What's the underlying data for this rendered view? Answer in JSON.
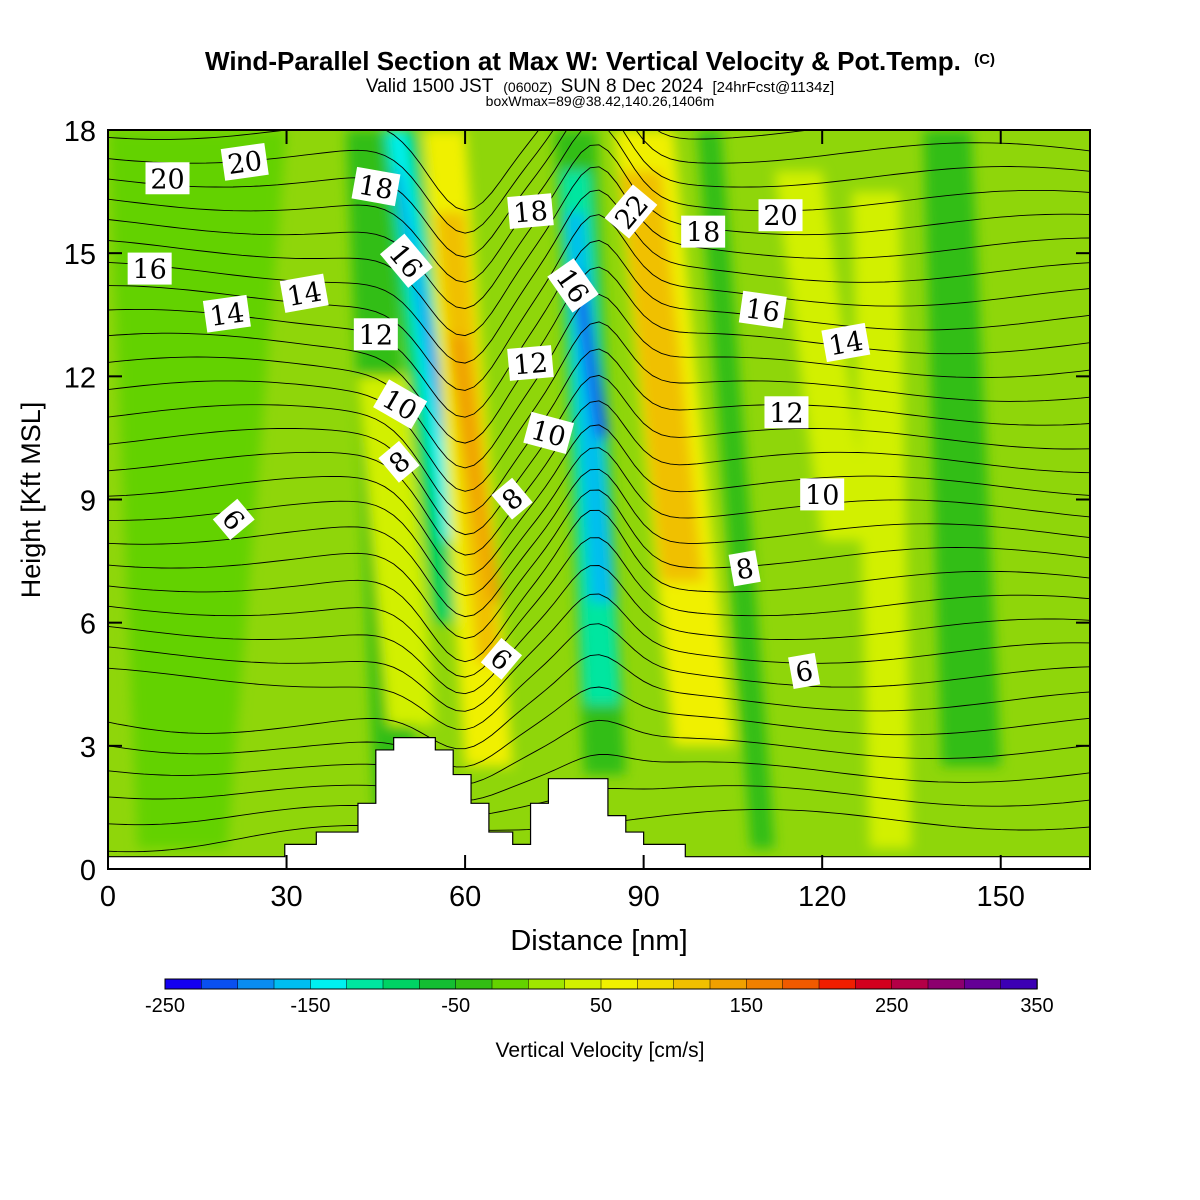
{
  "chart_data": {
    "type": "heatmap",
    "title": "Wind-Parallel Section at Max W: Vertical Velocity & Pot.Temp.",
    "title_mark": "(C)",
    "subtitle_main": "Valid 1500 JST",
    "subtitle_z": "(0600Z)",
    "subtitle_date": "SUN 8 Dec 2024",
    "subtitle_fcst": "[24hrFcst@1134z]",
    "subtitle2": "boxWmax=89@38.42,140.26,1406m",
    "xlabel": "Distance [nm]",
    "ylabel": "Height [Kft MSL]",
    "xlim": [
      0,
      165
    ],
    "ylim": [
      0,
      18
    ],
    "x_ticks": [
      0,
      30,
      60,
      90,
      120,
      150
    ],
    "y_ticks": [
      0,
      3,
      6,
      9,
      12,
      15,
      18
    ],
    "colorbar": {
      "label": "Vertical Velocity [cm/s]",
      "range": [
        -250,
        350
      ],
      "tick_labels": [
        "-250",
        "-150",
        "-50",
        "50",
        "150",
        "250",
        "350"
      ],
      "colors": [
        "#1400f0",
        "#0a50f0",
        "#0a8cf0",
        "#00bef0",
        "#00f0f0",
        "#00e6a0",
        "#00d264",
        "#14be32",
        "#32be14",
        "#64d200",
        "#a0e600",
        "#d2f000",
        "#f0f000",
        "#f0dc00",
        "#f0c000",
        "#f0a000",
        "#f08000",
        "#f05a00",
        "#f01e00",
        "#d2001e",
        "#b40046",
        "#8c006e",
        "#640096",
        "#3c00b4"
      ]
    },
    "theta_contour_labels": [
      {
        "text": "20",
        "x": 10,
        "y": 16.8,
        "rot": 0
      },
      {
        "text": "20",
        "x": 23,
        "y": 17.2,
        "rot": -8
      },
      {
        "text": "18",
        "x": 45,
        "y": 16.6,
        "rot": 10
      },
      {
        "text": "18",
        "x": 71,
        "y": 16.0,
        "rot": -5
      },
      {
        "text": "22",
        "x": 88,
        "y": 16.0,
        "rot": -50
      },
      {
        "text": "18",
        "x": 100,
        "y": 15.5,
        "rot": 0
      },
      {
        "text": "20",
        "x": 113,
        "y": 15.9,
        "rot": 0
      },
      {
        "text": "16",
        "x": 7,
        "y": 14.6,
        "rot": 0
      },
      {
        "text": "16",
        "x": 50,
        "y": 14.8,
        "rot": 50
      },
      {
        "text": "16",
        "x": 78,
        "y": 14.2,
        "rot": 55
      },
      {
        "text": "16",
        "x": 110,
        "y": 13.6,
        "rot": 8
      },
      {
        "text": "14",
        "x": 20,
        "y": 13.5,
        "rot": -8
      },
      {
        "text": "14",
        "x": 33,
        "y": 14.0,
        "rot": -10
      },
      {
        "text": "14",
        "x": 124,
        "y": 12.8,
        "rot": -10
      },
      {
        "text": "12",
        "x": 45,
        "y": 13.0,
        "rot": 0
      },
      {
        "text": "12",
        "x": 71,
        "y": 12.3,
        "rot": -5
      },
      {
        "text": "12",
        "x": 114,
        "y": 11.1,
        "rot": 0
      },
      {
        "text": "10",
        "x": 49,
        "y": 11.3,
        "rot": 30
      },
      {
        "text": "10",
        "x": 74,
        "y": 10.6,
        "rot": 15
      },
      {
        "text": "10",
        "x": 120,
        "y": 9.1,
        "rot": 0
      },
      {
        "text": "8",
        "x": 49,
        "y": 9.9,
        "rot": -40
      },
      {
        "text": "8",
        "x": 68,
        "y": 9.0,
        "rot": -40
      },
      {
        "text": "8",
        "x": 107,
        "y": 7.3,
        "rot": -10
      },
      {
        "text": "6",
        "x": 21,
        "y": 8.5,
        "rot": 50
      },
      {
        "text": "6",
        "x": 66,
        "y": 5.1,
        "rot": 40
      },
      {
        "text": "6",
        "x": 117,
        "y": 4.8,
        "rot": -10
      }
    ],
    "terrain_profile": [
      [
        0,
        0.3
      ],
      [
        29.7,
        0.3
      ],
      [
        29.7,
        0.6
      ],
      [
        35,
        0.6
      ],
      [
        35,
        0.9
      ],
      [
        42,
        0.9
      ],
      [
        42,
        1.6
      ],
      [
        45,
        1.6
      ],
      [
        45,
        2.9
      ],
      [
        48,
        2.9
      ],
      [
        48,
        3.2
      ],
      [
        55,
        3.2
      ],
      [
        55,
        2.9
      ],
      [
        58,
        2.9
      ],
      [
        58,
        2.3
      ],
      [
        61,
        2.3
      ],
      [
        61,
        1.6
      ],
      [
        64,
        1.6
      ],
      [
        64,
        0.9
      ],
      [
        68,
        0.9
      ],
      [
        68,
        0.6
      ],
      [
        71,
        0.6
      ],
      [
        71,
        1.6
      ],
      [
        74,
        1.6
      ],
      [
        74,
        2.2
      ],
      [
        84,
        2.2
      ],
      [
        84,
        1.3
      ],
      [
        87,
        1.3
      ],
      [
        87,
        0.9
      ],
      [
        90,
        0.9
      ],
      [
        90,
        0.6
      ],
      [
        97,
        0.6
      ],
      [
        97,
        0.3
      ],
      [
        165,
        0.3
      ]
    ]
  }
}
